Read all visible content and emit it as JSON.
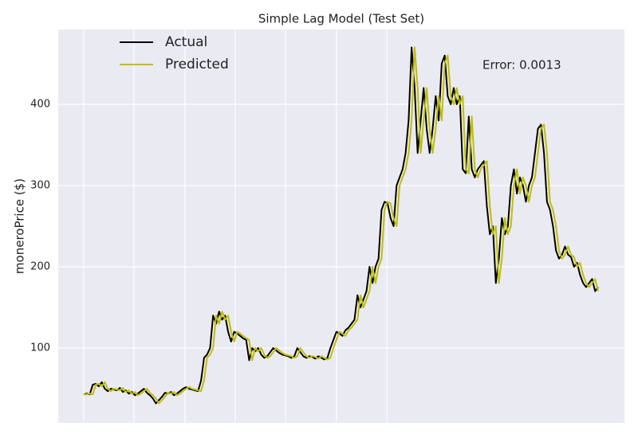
{
  "chart_data": {
    "type": "line",
    "title": "Simple Lag Model (Test Set)",
    "y_label": "moneroPrice ($)",
    "annotation": "Error: 0.0013",
    "ylim": [
      8,
      492
    ],
    "yticks": [
      100,
      200,
      300,
      400
    ],
    "grid": true,
    "legend": "upper left",
    "series": [
      {
        "name": "Actual",
        "color": "#000000",
        "values": [
          43,
          44,
          43,
          55,
          56,
          53,
          58,
          50,
          47,
          50,
          49,
          48,
          51,
          46,
          48,
          44,
          46,
          42,
          44,
          47,
          50,
          45,
          42,
          38,
          32,
          36,
          40,
          45,
          44,
          46,
          42,
          44,
          47,
          50,
          52,
          50,
          49,
          48,
          47,
          60,
          88,
          92,
          100,
          140,
          130,
          145,
          135,
          140,
          120,
          108,
          120,
          118,
          115,
          112,
          110,
          85,
          100,
          96,
          100,
          92,
          88,
          90,
          95,
          100,
          97,
          94,
          92,
          91,
          90,
          88,
          90,
          100,
          95,
          90,
          88,
          90,
          89,
          87,
          90,
          88,
          86,
          88,
          100,
          110,
          120,
          118,
          115,
          122,
          125,
          130,
          135,
          165,
          150,
          160,
          170,
          200,
          180,
          200,
          210,
          270,
          280,
          278,
          260,
          250,
          300,
          310,
          320,
          340,
          380,
          470,
          420,
          340,
          380,
          420,
          370,
          340,
          370,
          410,
          380,
          450,
          460,
          410,
          400,
          420,
          400,
          410,
          320,
          315,
          385,
          320,
          310,
          320,
          325,
          330,
          275,
          240,
          250,
          180,
          210,
          260,
          240,
          250,
          300,
          320,
          290,
          310,
          300,
          280,
          300,
          310,
          340,
          370,
          375,
          340,
          280,
          270,
          250,
          220,
          210,
          215,
          225,
          215,
          212,
          200,
          205,
          190,
          180,
          175,
          180,
          185,
          170,
          175
        ]
      },
      {
        "name": "Predicted",
        "color": "#bfbf00",
        "values": [
          43,
          43,
          44,
          43,
          55,
          56,
          53,
          58,
          50,
          47,
          50,
          49,
          48,
          51,
          46,
          48,
          44,
          46,
          42,
          44,
          47,
          50,
          45,
          42,
          38,
          32,
          36,
          40,
          45,
          44,
          46,
          42,
          44,
          47,
          50,
          52,
          50,
          49,
          48,
          47,
          60,
          88,
          92,
          100,
          140,
          130,
          145,
          135,
          140,
          120,
          108,
          120,
          118,
          115,
          112,
          110,
          85,
          100,
          96,
          100,
          92,
          88,
          90,
          95,
          100,
          97,
          94,
          92,
          91,
          90,
          88,
          90,
          100,
          95,
          90,
          88,
          90,
          89,
          87,
          90,
          88,
          86,
          88,
          100,
          110,
          120,
          118,
          115,
          122,
          125,
          130,
          135,
          165,
          150,
          160,
          170,
          200,
          180,
          200,
          210,
          270,
          280,
          278,
          260,
          250,
          300,
          310,
          320,
          340,
          380,
          470,
          420,
          340,
          380,
          420,
          370,
          340,
          370,
          410,
          380,
          450,
          460,
          410,
          400,
          420,
          400,
          410,
          320,
          315,
          385,
          320,
          310,
          320,
          325,
          330,
          275,
          240,
          250,
          180,
          210,
          260,
          240,
          250,
          300,
          320,
          290,
          310,
          300,
          280,
          300,
          310,
          340,
          370,
          375,
          340,
          280,
          270,
          250,
          220,
          210,
          215,
          225,
          215,
          212,
          200,
          205,
          190,
          180,
          175,
          180,
          185,
          170
        ]
      }
    ]
  }
}
